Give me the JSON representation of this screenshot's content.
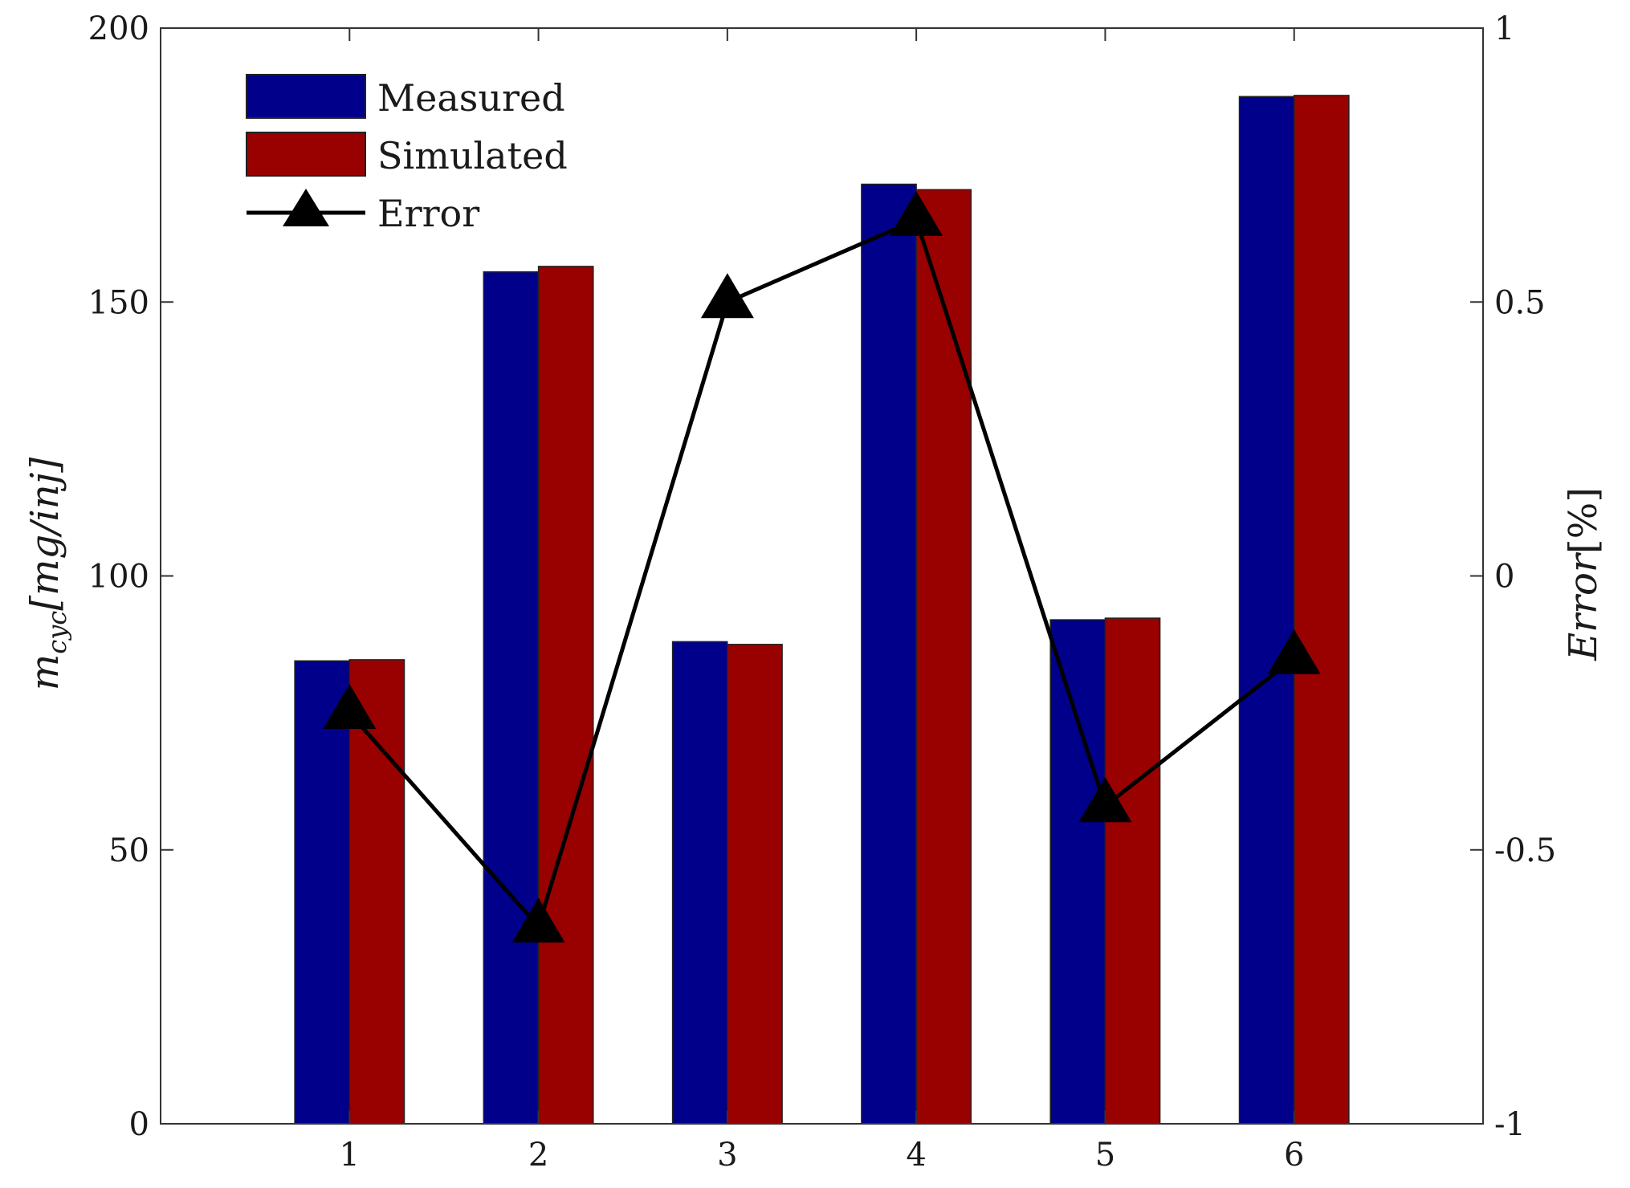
{
  "chart_data": {
    "type": "bar",
    "categories": [
      "1",
      "2",
      "3",
      "4",
      "5",
      "6"
    ],
    "series": [
      {
        "name": "Measured",
        "axis": "left",
        "kind": "bar",
        "color": "#00008b",
        "values": [
          84.5,
          155.5,
          88.0,
          171.5,
          92.0,
          187.5
        ]
      },
      {
        "name": "Simulated",
        "axis": "left",
        "kind": "bar",
        "color": "#990000",
        "values": [
          84.7,
          156.5,
          87.5,
          170.5,
          92.3,
          187.7
        ]
      },
      {
        "name": "Error",
        "axis": "right",
        "kind": "line",
        "marker": "triangle",
        "color": "#000000",
        "values": [
          -0.25,
          -0.64,
          0.5,
          0.65,
          -0.42,
          -0.15
        ]
      }
    ],
    "left_axis": {
      "label_main": "m",
      "label_sub": "cyc",
      "label_rest": "[mg/inj]",
      "ylim": [
        0,
        200
      ],
      "ticks": [
        "0",
        "50",
        "100",
        "150",
        "200"
      ]
    },
    "right_axis": {
      "label_main": "Error",
      "label_rest": "[%]",
      "ylim": [
        -1,
        1
      ],
      "ticks": [
        "-1",
        "-0.5",
        "0",
        "0.5",
        "1"
      ]
    },
    "xlim": [
      0,
      7
    ],
    "legend": {
      "position": "top-left",
      "entries": [
        "Measured",
        "Simulated",
        "Error"
      ]
    },
    "grid": false
  }
}
